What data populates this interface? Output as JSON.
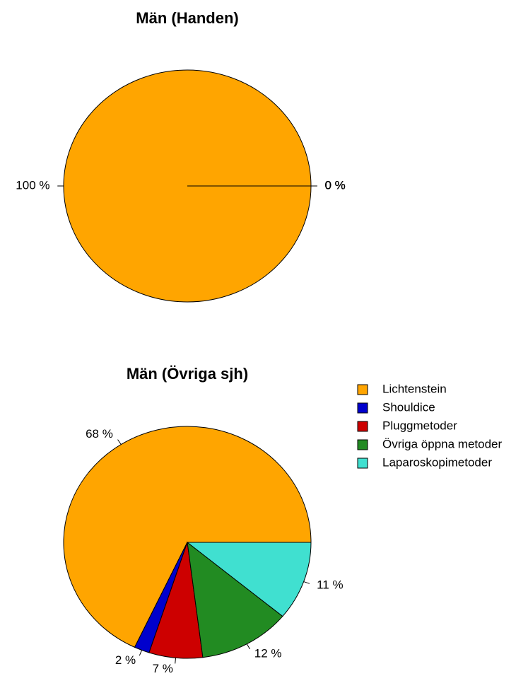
{
  "chart_data": [
    {
      "type": "pie",
      "title": "Män (Handen)",
      "categories": [
        "Lichtenstein",
        "Shouldice",
        "Pluggmetoder",
        "Övriga öppna metoder",
        "Laparoskopimetoder"
      ],
      "values": [
        100,
        0,
        0,
        0,
        0
      ],
      "value_labels": [
        "100 %",
        "0 %",
        "0 %",
        "0 %",
        "0 %"
      ],
      "colors": [
        "#ffa500",
        "#0000cd",
        "#cd0000",
        "#228b22",
        "#40e0d0"
      ]
    },
    {
      "type": "pie",
      "title": "Män (Övriga sjh)",
      "categories": [
        "Lichtenstein",
        "Shouldice",
        "Pluggmetoder",
        "Övriga öppna metoder",
        "Laparoskopimetoder"
      ],
      "values": [
        68,
        2,
        7,
        12,
        11
      ],
      "value_labels": [
        "68 %",
        "2 %",
        "7 %",
        "12 %",
        "11 %"
      ],
      "colors": [
        "#ffa500",
        "#0000cd",
        "#cd0000",
        "#228b22",
        "#40e0d0"
      ],
      "legend": "right"
    }
  ]
}
